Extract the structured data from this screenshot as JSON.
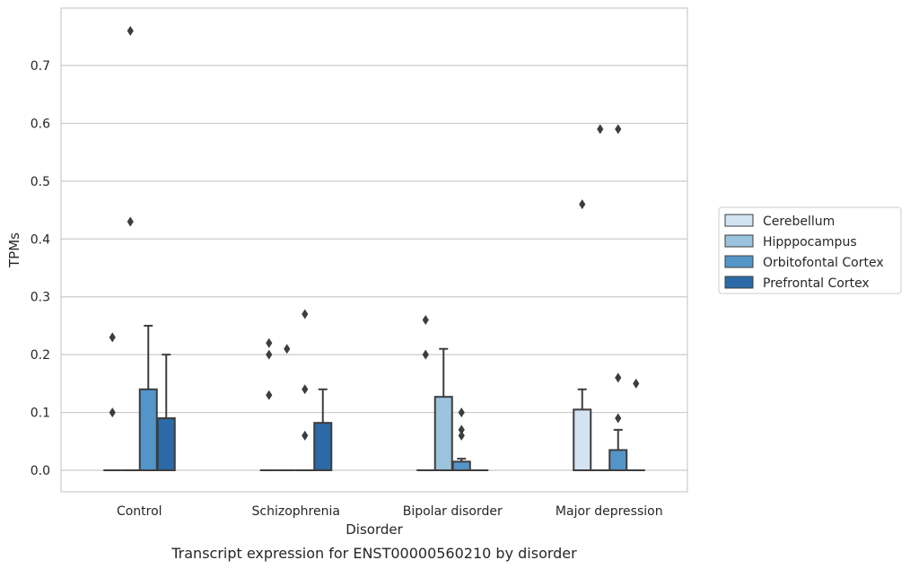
{
  "chart_data": {
    "type": "box",
    "caption": "Transcript expression for ENST00000560210 by disorder",
    "xlabel": "Disorder",
    "ylabel": "TPMs",
    "ylim": [
      -0.037,
      0.8
    ],
    "yticks": [
      "0.0",
      "0.1",
      "0.2",
      "0.3",
      "0.4",
      "0.5",
      "0.6",
      "0.7"
    ],
    "grid": "horizontal",
    "legend_position": "right",
    "categories": [
      "Control",
      "Schizophrenia",
      "Bipolar disorder",
      "Major depression"
    ],
    "series": [
      {
        "name": "Cerebellum",
        "color": "#d3e3f2",
        "boxes": [
          {
            "q1": 0,
            "median": 0,
            "q3": 0,
            "whisker_low": 0,
            "whisker_high": 0,
            "outliers": [
              0.1,
              0.23
            ]
          },
          {
            "q1": 0,
            "median": 0,
            "q3": 0,
            "whisker_low": 0,
            "whisker_high": 0,
            "outliers": [
              0.13,
              0.2,
              0.22
            ]
          },
          {
            "q1": 0,
            "median": 0,
            "q3": 0,
            "whisker_low": 0,
            "whisker_high": 0,
            "outliers": [
              0.2,
              0.26
            ]
          },
          {
            "q1": 0,
            "median": 0,
            "q3": 0.105,
            "whisker_low": 0,
            "whisker_high": 0.14,
            "outliers": [
              0.46
            ]
          }
        ]
      },
      {
        "name": "Hipppocampus",
        "color": "#9cc3de",
        "boxes": [
          {
            "q1": 0,
            "median": 0,
            "q3": 0,
            "whisker_low": 0,
            "whisker_high": 0,
            "outliers": [
              0.43,
              0.76
            ]
          },
          {
            "q1": 0,
            "median": 0,
            "q3": 0,
            "whisker_low": 0,
            "whisker_high": 0,
            "outliers": [
              0.21
            ]
          },
          {
            "q1": 0,
            "median": 0,
            "q3": 0.127,
            "whisker_low": 0,
            "whisker_high": 0.21,
            "outliers": []
          },
          {
            "q1": 0,
            "median": 0,
            "q3": 0,
            "whisker_low": 0,
            "whisker_high": 0,
            "outliers": [
              0.59
            ]
          }
        ]
      },
      {
        "name": "Orbitofontal Cortex",
        "color": "#5495c8",
        "boxes": [
          {
            "q1": 0,
            "median": 0,
            "q3": 0.14,
            "whisker_low": 0,
            "whisker_high": 0.25,
            "outliers": []
          },
          {
            "q1": 0,
            "median": 0,
            "q3": 0,
            "whisker_low": 0,
            "whisker_high": 0,
            "outliers": [
              0.06,
              0.14,
              0.27
            ]
          },
          {
            "q1": 0,
            "median": 0,
            "q3": 0.015,
            "whisker_low": 0,
            "whisker_high": 0.02,
            "outliers": [
              0.06,
              0.07,
              0.1
            ]
          },
          {
            "q1": 0,
            "median": 0,
            "q3": 0.035,
            "whisker_low": 0,
            "whisker_high": 0.07,
            "outliers": [
              0.09,
              0.16,
              0.59
            ]
          }
        ]
      },
      {
        "name": "Prefrontal Cortex",
        "color": "#2b6aa6",
        "boxes": [
          {
            "q1": 0,
            "median": 0,
            "q3": 0.09,
            "whisker_low": 0,
            "whisker_high": 0.2,
            "outliers": []
          },
          {
            "q1": 0,
            "median": 0,
            "q3": 0.082,
            "whisker_low": 0,
            "whisker_high": 0.14,
            "outliers": []
          },
          {
            "q1": 0,
            "median": 0,
            "q3": 0,
            "whisker_low": 0,
            "whisker_high": 0,
            "outliers": []
          },
          {
            "q1": 0,
            "median": 0,
            "q3": 0,
            "whisker_low": 0,
            "whisker_high": 0,
            "outliers": [
              0.15
            ]
          }
        ]
      }
    ]
  }
}
